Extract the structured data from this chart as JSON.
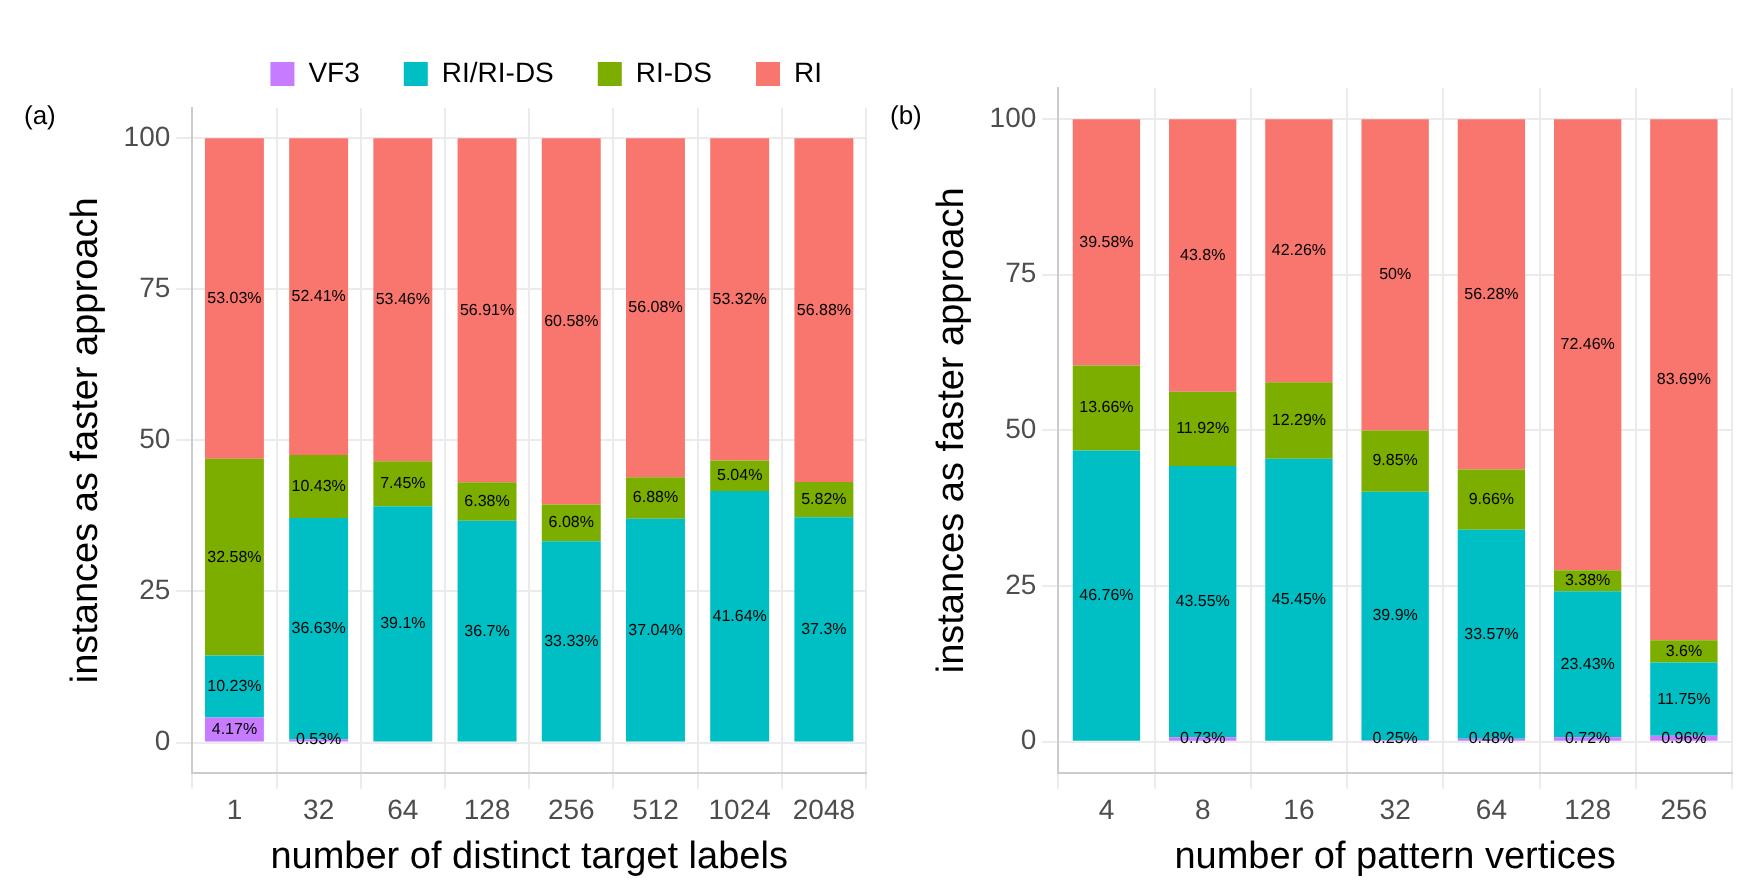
{
  "chart_data": [
    {
      "type": "bar",
      "stacked": true,
      "annotations": [
        "(a)"
      ],
      "xlabel": "number of distinct target labels",
      "ylabel": "instances as faster approach",
      "categories": [
        "1",
        "32",
        "64",
        "128",
        "256",
        "512",
        "1024",
        "2048"
      ],
      "ylim": [
        -5,
        105
      ],
      "yticks": [
        0,
        25,
        50,
        75,
        100
      ],
      "grid": true,
      "legend": "top",
      "series": [
        {
          "name": "VF3",
          "color": "#c77cff",
          "values": [
            4.17,
            0.53,
            null,
            null,
            null,
            null,
            null,
            null
          ],
          "value_labels": [
            "4.17%",
            "0.53%",
            null,
            null,
            null,
            null,
            null,
            null
          ]
        },
        {
          "name": "RI/RI-DS",
          "color": "#00bfc4",
          "values": [
            10.23,
            36.63,
            39.1,
            36.7,
            33.33,
            37.04,
            41.64,
            37.3
          ],
          "value_labels": [
            "10.23%",
            "36.63%",
            "39.1%",
            "36.7%",
            "33.33%",
            "37.04%",
            "41.64%",
            "37.3%"
          ]
        },
        {
          "name": "RI-DS",
          "color": "#7cae00",
          "values": [
            32.58,
            10.43,
            7.45,
            6.38,
            6.08,
            6.88,
            5.04,
            5.82
          ],
          "value_labels": [
            "32.58%",
            "10.43%",
            "7.45%",
            "6.38%",
            "6.08%",
            "6.88%",
            "5.04%",
            "5.82%"
          ]
        },
        {
          "name": "RI",
          "color": "#f8766d",
          "values": [
            53.03,
            52.41,
            53.46,
            56.91,
            60.58,
            56.08,
            53.32,
            56.88
          ],
          "value_labels": [
            "53.03%",
            "52.41%",
            "53.46%",
            "56.91%",
            "60.58%",
            "56.08%",
            "53.32%",
            "56.88%"
          ]
        }
      ]
    },
    {
      "type": "bar",
      "stacked": true,
      "annotations": [
        "(b)"
      ],
      "xlabel": "number of pattern vertices",
      "ylabel": "instances as faster approach",
      "categories": [
        "4",
        "8",
        "16",
        "32",
        "64",
        "128",
        "256"
      ],
      "ylim": [
        -5,
        105
      ],
      "yticks": [
        0,
        25,
        50,
        75,
        100
      ],
      "grid": true,
      "series": [
        {
          "color": "#c77cff",
          "values": [
            null,
            0.73,
            null,
            0.25,
            0.48,
            0.72,
            0.96
          ],
          "value_labels": [
            null,
            "0.73%",
            null,
            "0.25%",
            "0.48%",
            "0.72%",
            "0.96%"
          ]
        },
        {
          "color": "#00bfc4",
          "values": [
            46.76,
            43.55,
            45.45,
            39.9,
            33.57,
            23.43,
            11.75
          ],
          "value_labels": [
            "46.76%",
            "43.55%",
            "45.45%",
            "39.9%",
            "33.57%",
            "23.43%",
            "11.75%"
          ]
        },
        {
          "color": "#7cae00",
          "values": [
            13.66,
            11.92,
            12.29,
            9.85,
            9.66,
            3.38,
            3.6
          ],
          "value_labels": [
            "13.66%",
            "11.92%",
            "12.29%",
            "9.85%",
            "9.66%",
            "3.38%",
            "3.6%"
          ]
        },
        {
          "color": "#f8766d",
          "values": [
            39.58,
            43.8,
            42.26,
            50,
            56.28,
            72.46,
            83.69
          ],
          "value_labels": [
            "39.58%",
            "43.8%",
            "42.26%",
            "50%",
            "56.28%",
            "72.46%",
            "83.69%"
          ]
        }
      ]
    }
  ]
}
